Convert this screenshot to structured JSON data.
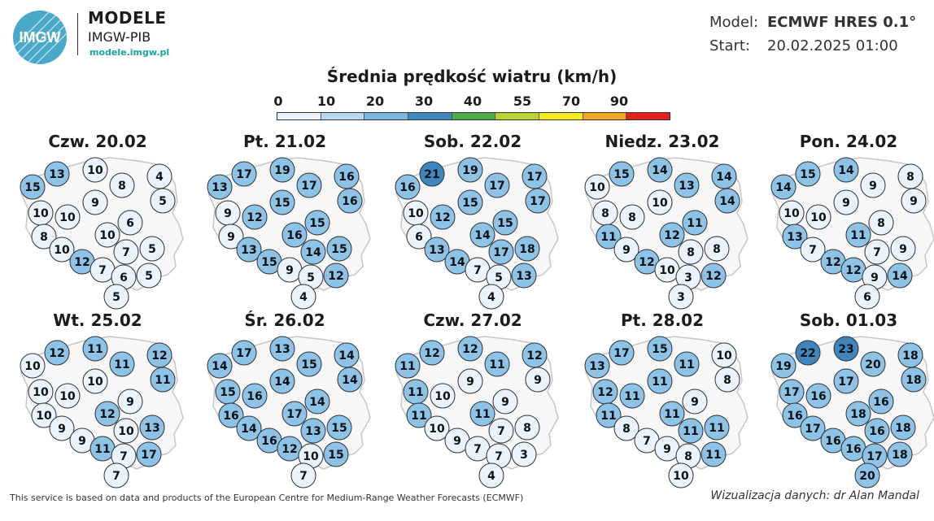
{
  "header": {
    "logo_mark": "IMGW",
    "logo_name": "MODELE",
    "logo_org": "IMGW-PIB",
    "logo_url": "modele.imgw.pl",
    "model_label": "Model:",
    "model_value": "ECMWF HRES 0.1°",
    "start_label": "Start:",
    "start_value": "20.02.2025 01:00"
  },
  "title": "Średnia prędkość wiatru (km/h)",
  "legend": {
    "ticks": [
      "0",
      "10",
      "20",
      "30",
      "40",
      "55",
      "70",
      "90"
    ],
    "colors": [
      "#eaf3fb",
      "#b8d8f0",
      "#7ab6e0",
      "#3f88be",
      "#4caa48",
      "#b7d334",
      "#f5ec1e",
      "#f5a623",
      "#e8201c"
    ]
  },
  "panels": [
    {
      "title": "Czw. 20.02",
      "values": [
        15,
        13,
        10,
        8,
        4,
        9,
        5,
        10,
        10,
        6,
        8,
        10,
        10,
        7,
        5,
        12,
        7,
        6,
        5,
        5
      ]
    },
    {
      "title": "Pt. 21.02",
      "values": [
        13,
        17,
        19,
        17,
        16,
        15,
        16,
        9,
        12,
        15,
        9,
        16,
        13,
        14,
        15,
        15,
        9,
        5,
        12,
        4
      ]
    },
    {
      "title": "Sob. 22.02",
      "values": [
        16,
        21,
        19,
        17,
        17,
        15,
        17,
        10,
        12,
        15,
        6,
        14,
        13,
        17,
        18,
        14,
        7,
        5,
        13,
        4
      ]
    },
    {
      "title": "Niedz. 23.02",
      "values": [
        10,
        15,
        14,
        13,
        14,
        10,
        14,
        8,
        8,
        11,
        11,
        12,
        9,
        8,
        8,
        12,
        10,
        3,
        12,
        3
      ]
    },
    {
      "title": "Pon. 24.02",
      "values": [
        14,
        15,
        14,
        9,
        8,
        9,
        9,
        10,
        10,
        8,
        13,
        11,
        7,
        7,
        9,
        12,
        12,
        9,
        14,
        6
      ]
    },
    {
      "title": "Wt. 25.02",
      "values": [
        10,
        12,
        11,
        11,
        12,
        10,
        11,
        10,
        10,
        9,
        10,
        12,
        9,
        10,
        13,
        9,
        11,
        7,
        17,
        7
      ]
    },
    {
      "title": "Śr. 26.02",
      "values": [
        14,
        17,
        13,
        15,
        14,
        14,
        14,
        15,
        16,
        14,
        16,
        17,
        14,
        13,
        15,
        16,
        12,
        10,
        15,
        7
      ]
    },
    {
      "title": "Czw. 27.02",
      "values": [
        11,
        12,
        12,
        11,
        12,
        9,
        9,
        11,
        10,
        9,
        11,
        11,
        10,
        7,
        8,
        9,
        7,
        7,
        3,
        4
      ]
    },
    {
      "title": "Pt. 28.02",
      "values": [
        13,
        17,
        15,
        11,
        10,
        11,
        8,
        12,
        11,
        9,
        11,
        11,
        8,
        11,
        11,
        7,
        9,
        8,
        11,
        10
      ]
    },
    {
      "title": "Sob. 01.03",
      "values": [
        19,
        22,
        23,
        20,
        18,
        17,
        18,
        17,
        16,
        16,
        16,
        18,
        17,
        16,
        18,
        16,
        16,
        17,
        18,
        20
      ]
    }
  ],
  "footer": {
    "left": "This service is based on data and products of the European Centre for Medium-Range Weather Forecasts (ECMWF)",
    "right": "Wizualizacja danych: dr Alan Mandal"
  }
}
